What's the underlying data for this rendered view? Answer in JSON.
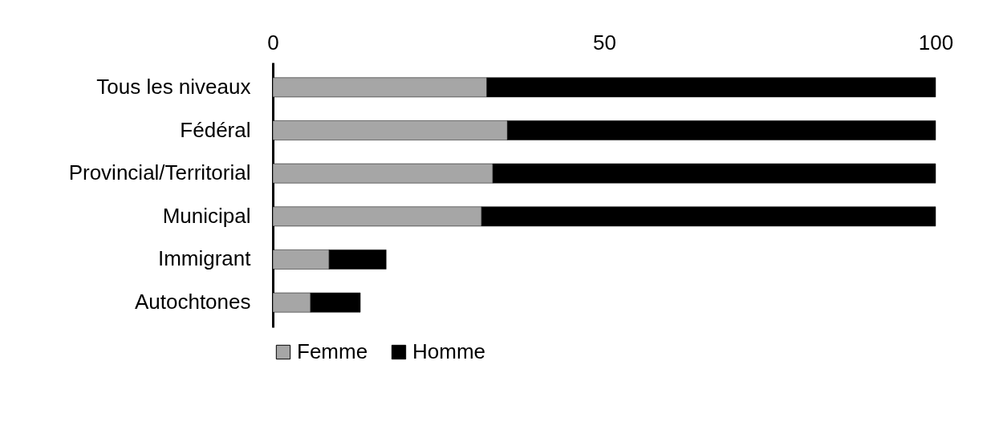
{
  "chart_data": {
    "type": "bar",
    "orientation": "horizontal",
    "stacked": true,
    "categories": [
      "Tous les niveaux",
      "Fédéral",
      "Provincial/Territorial",
      "Municipal",
      "Immigrant",
      "Autochtones"
    ],
    "series": [
      {
        "name": "Femme",
        "color": "#a6a6a6",
        "values": [
          32.3,
          35.4,
          33.2,
          31.5,
          8.5,
          5.7
        ]
      },
      {
        "name": "Homme",
        "color": "#000000",
        "values": [
          67.7,
          64.6,
          66.8,
          68.5,
          8.6,
          7.5
        ]
      }
    ],
    "xlim": [
      0,
      100
    ],
    "xticks": [
      0,
      50,
      100
    ],
    "grid": false,
    "legend": "bottom"
  }
}
